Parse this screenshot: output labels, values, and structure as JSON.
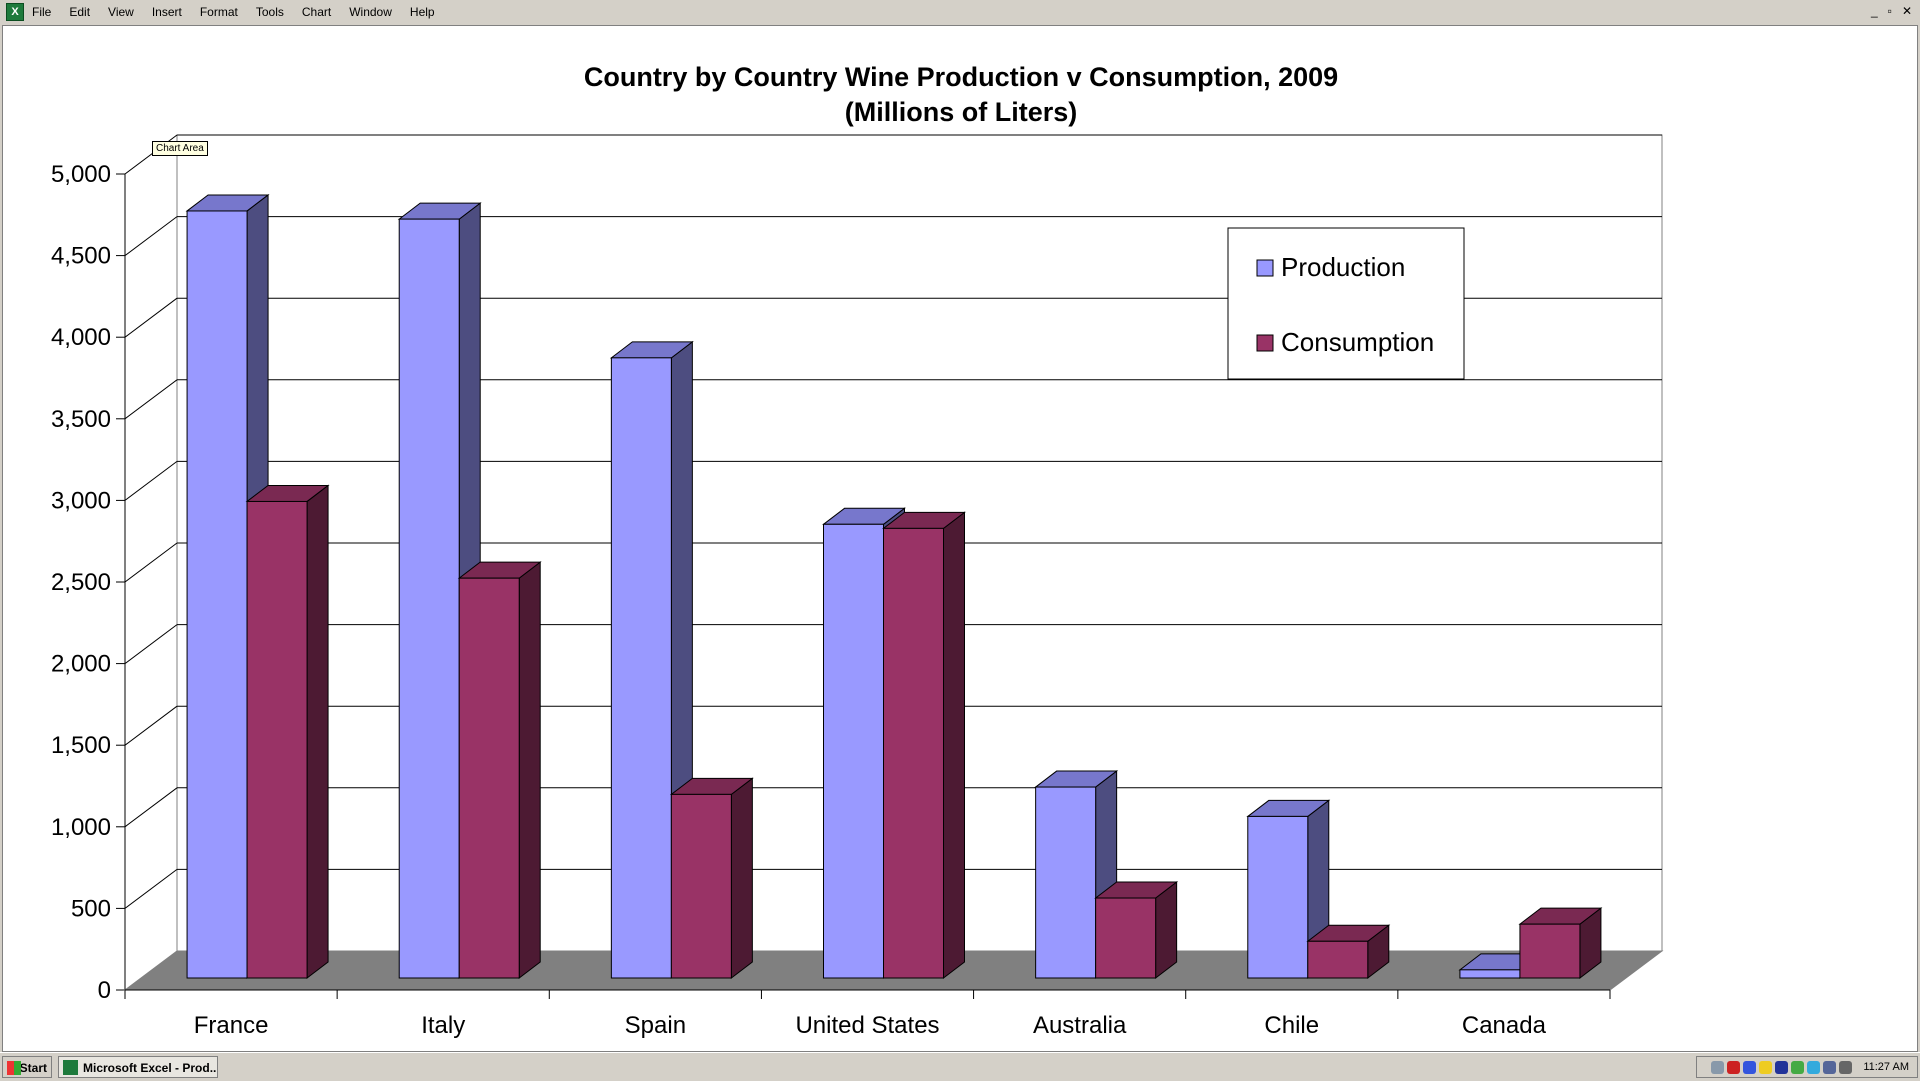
{
  "menu": {
    "items": [
      "File",
      "Edit",
      "View",
      "Insert",
      "Format",
      "Tools",
      "Chart",
      "Window",
      "Help"
    ]
  },
  "window_controls": [
    "_",
    "▫",
    "✕"
  ],
  "tooltip": "Chart Area",
  "taskbar": {
    "start": "Start",
    "task": "Microsoft Excel - Prod...",
    "clock": "11:27 AM",
    "tray_icons": [
      {
        "name": "printer-icon",
        "color": "#8899aa"
      },
      {
        "name": "acrobat-icon",
        "color": "#cc2222"
      },
      {
        "name": "network-wave-icon",
        "color": "#3355dd"
      },
      {
        "name": "security-shield-icon",
        "color": "#eecc22"
      },
      {
        "name": "scheduler-icon",
        "color": "#223399"
      },
      {
        "name": "app-icon",
        "color": "#44aa44"
      },
      {
        "name": "quicktime-icon",
        "color": "#33aadd"
      },
      {
        "name": "network-icon",
        "color": "#556699"
      },
      {
        "name": "speaker-icon",
        "color": "#666666"
      }
    ]
  },
  "colors": {
    "production": "#9999FF",
    "production_side": "#4D4D80",
    "production_top": "#7777CC",
    "consumption": "#993366",
    "consumption_side": "#4D1A33",
    "consumption_top": "#7A2952",
    "floor": "#808080"
  },
  "chart_data": {
    "type": "bar",
    "title": "Country by Country Wine Production v Consumption, 2009",
    "subtitle": "(Millions of Liters)",
    "xlabel": "",
    "ylabel": "",
    "categories": [
      "France",
      "Italy",
      "Spain",
      "United States",
      "Australia",
      "Chile",
      "Canada"
    ],
    "series": [
      {
        "name": "Production",
        "values": [
          4700,
          4650,
          3800,
          2780,
          1170,
          990,
          50
        ]
      },
      {
        "name": "Consumption",
        "values": [
          2920,
          2450,
          1125,
          2755,
          490,
          225,
          330
        ]
      }
    ],
    "ylim": [
      0,
      5000
    ],
    "yticks": [
      "0",
      "500",
      "1,000",
      "1,500",
      "2,000",
      "2,500",
      "3,000",
      "3,500",
      "4,000",
      "4,500",
      "5,000"
    ],
    "grid": true,
    "legend_position": "top-right",
    "style": "3d-clustered-column"
  }
}
